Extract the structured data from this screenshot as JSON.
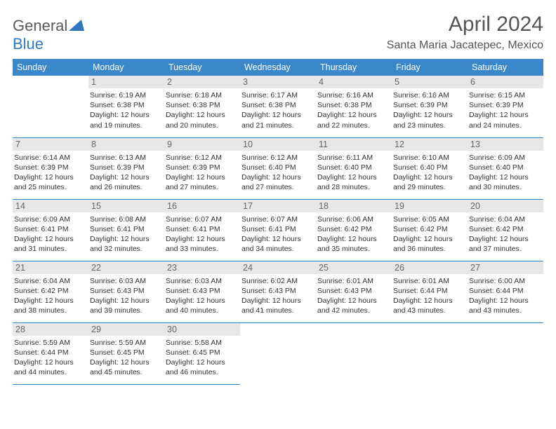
{
  "brand": {
    "name_part1": "General",
    "name_part2": "Blue"
  },
  "title": "April 2024",
  "location": "Santa Maria Jacatepec, Mexico",
  "colors": {
    "header_bg": "#3a87c9",
    "header_text": "#ffffff",
    "daynum_bg": "#e7e7e7",
    "daynum_text": "#666666",
    "body_text": "#333333",
    "rule": "#3a87c9",
    "brand_gray": "#5a5a5a",
    "brand_blue": "#2f78bf"
  },
  "weekdays": [
    "Sunday",
    "Monday",
    "Tuesday",
    "Wednesday",
    "Thursday",
    "Friday",
    "Saturday"
  ],
  "weeks": [
    [
      null,
      {
        "n": "1",
        "sr": "Sunrise: 6:19 AM",
        "ss": "Sunset: 6:38 PM",
        "d1": "Daylight: 12 hours",
        "d2": "and 19 minutes."
      },
      {
        "n": "2",
        "sr": "Sunrise: 6:18 AM",
        "ss": "Sunset: 6:38 PM",
        "d1": "Daylight: 12 hours",
        "d2": "and 20 minutes."
      },
      {
        "n": "3",
        "sr": "Sunrise: 6:17 AM",
        "ss": "Sunset: 6:38 PM",
        "d1": "Daylight: 12 hours",
        "d2": "and 21 minutes."
      },
      {
        "n": "4",
        "sr": "Sunrise: 6:16 AM",
        "ss": "Sunset: 6:38 PM",
        "d1": "Daylight: 12 hours",
        "d2": "and 22 minutes."
      },
      {
        "n": "5",
        "sr": "Sunrise: 6:16 AM",
        "ss": "Sunset: 6:39 PM",
        "d1": "Daylight: 12 hours",
        "d2": "and 23 minutes."
      },
      {
        "n": "6",
        "sr": "Sunrise: 6:15 AM",
        "ss": "Sunset: 6:39 PM",
        "d1": "Daylight: 12 hours",
        "d2": "and 24 minutes."
      }
    ],
    [
      {
        "n": "7",
        "sr": "Sunrise: 6:14 AM",
        "ss": "Sunset: 6:39 PM",
        "d1": "Daylight: 12 hours",
        "d2": "and 25 minutes."
      },
      {
        "n": "8",
        "sr": "Sunrise: 6:13 AM",
        "ss": "Sunset: 6:39 PM",
        "d1": "Daylight: 12 hours",
        "d2": "and 26 minutes."
      },
      {
        "n": "9",
        "sr": "Sunrise: 6:12 AM",
        "ss": "Sunset: 6:39 PM",
        "d1": "Daylight: 12 hours",
        "d2": "and 27 minutes."
      },
      {
        "n": "10",
        "sr": "Sunrise: 6:12 AM",
        "ss": "Sunset: 6:40 PM",
        "d1": "Daylight: 12 hours",
        "d2": "and 27 minutes."
      },
      {
        "n": "11",
        "sr": "Sunrise: 6:11 AM",
        "ss": "Sunset: 6:40 PM",
        "d1": "Daylight: 12 hours",
        "d2": "and 28 minutes."
      },
      {
        "n": "12",
        "sr": "Sunrise: 6:10 AM",
        "ss": "Sunset: 6:40 PM",
        "d1": "Daylight: 12 hours",
        "d2": "and 29 minutes."
      },
      {
        "n": "13",
        "sr": "Sunrise: 6:09 AM",
        "ss": "Sunset: 6:40 PM",
        "d1": "Daylight: 12 hours",
        "d2": "and 30 minutes."
      }
    ],
    [
      {
        "n": "14",
        "sr": "Sunrise: 6:09 AM",
        "ss": "Sunset: 6:41 PM",
        "d1": "Daylight: 12 hours",
        "d2": "and 31 minutes."
      },
      {
        "n": "15",
        "sr": "Sunrise: 6:08 AM",
        "ss": "Sunset: 6:41 PM",
        "d1": "Daylight: 12 hours",
        "d2": "and 32 minutes."
      },
      {
        "n": "16",
        "sr": "Sunrise: 6:07 AM",
        "ss": "Sunset: 6:41 PM",
        "d1": "Daylight: 12 hours",
        "d2": "and 33 minutes."
      },
      {
        "n": "17",
        "sr": "Sunrise: 6:07 AM",
        "ss": "Sunset: 6:41 PM",
        "d1": "Daylight: 12 hours",
        "d2": "and 34 minutes."
      },
      {
        "n": "18",
        "sr": "Sunrise: 6:06 AM",
        "ss": "Sunset: 6:42 PM",
        "d1": "Daylight: 12 hours",
        "d2": "and 35 minutes."
      },
      {
        "n": "19",
        "sr": "Sunrise: 6:05 AM",
        "ss": "Sunset: 6:42 PM",
        "d1": "Daylight: 12 hours",
        "d2": "and 36 minutes."
      },
      {
        "n": "20",
        "sr": "Sunrise: 6:04 AM",
        "ss": "Sunset: 6:42 PM",
        "d1": "Daylight: 12 hours",
        "d2": "and 37 minutes."
      }
    ],
    [
      {
        "n": "21",
        "sr": "Sunrise: 6:04 AM",
        "ss": "Sunset: 6:42 PM",
        "d1": "Daylight: 12 hours",
        "d2": "and 38 minutes."
      },
      {
        "n": "22",
        "sr": "Sunrise: 6:03 AM",
        "ss": "Sunset: 6:43 PM",
        "d1": "Daylight: 12 hours",
        "d2": "and 39 minutes."
      },
      {
        "n": "23",
        "sr": "Sunrise: 6:03 AM",
        "ss": "Sunset: 6:43 PM",
        "d1": "Daylight: 12 hours",
        "d2": "and 40 minutes."
      },
      {
        "n": "24",
        "sr": "Sunrise: 6:02 AM",
        "ss": "Sunset: 6:43 PM",
        "d1": "Daylight: 12 hours",
        "d2": "and 41 minutes."
      },
      {
        "n": "25",
        "sr": "Sunrise: 6:01 AM",
        "ss": "Sunset: 6:43 PM",
        "d1": "Daylight: 12 hours",
        "d2": "and 42 minutes."
      },
      {
        "n": "26",
        "sr": "Sunrise: 6:01 AM",
        "ss": "Sunset: 6:44 PM",
        "d1": "Daylight: 12 hours",
        "d2": "and 43 minutes."
      },
      {
        "n": "27",
        "sr": "Sunrise: 6:00 AM",
        "ss": "Sunset: 6:44 PM",
        "d1": "Daylight: 12 hours",
        "d2": "and 43 minutes."
      }
    ],
    [
      {
        "n": "28",
        "sr": "Sunrise: 5:59 AM",
        "ss": "Sunset: 6:44 PM",
        "d1": "Daylight: 12 hours",
        "d2": "and 44 minutes."
      },
      {
        "n": "29",
        "sr": "Sunrise: 5:59 AM",
        "ss": "Sunset: 6:45 PM",
        "d1": "Daylight: 12 hours",
        "d2": "and 45 minutes."
      },
      {
        "n": "30",
        "sr": "Sunrise: 5:58 AM",
        "ss": "Sunset: 6:45 PM",
        "d1": "Daylight: 12 hours",
        "d2": "and 46 minutes."
      },
      null,
      null,
      null,
      null
    ]
  ]
}
